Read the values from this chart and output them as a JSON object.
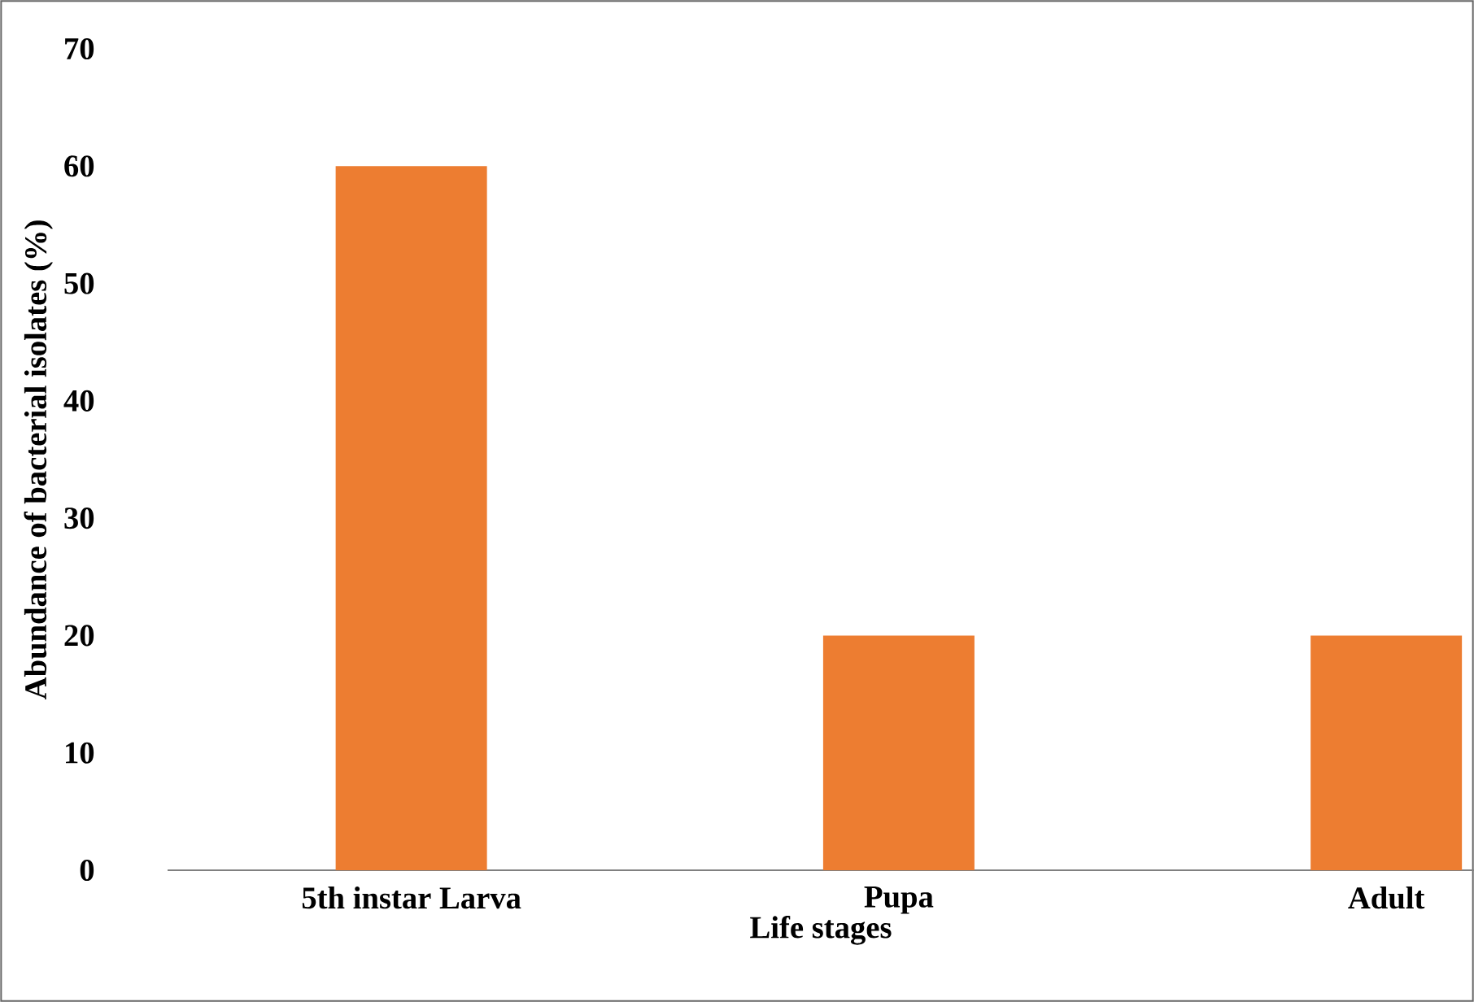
{
  "chart_data": {
    "type": "bar",
    "xlabel": "Life stages",
    "ylabel": "Abundance of bacterial isolates (%)",
    "categories": [
      "5th instar Larva",
      "Pupa",
      "Adult"
    ],
    "values": [
      60,
      20,
      20
    ],
    "color": "#ed7d31",
    "ylim": [
      0,
      70
    ],
    "yticks": [
      0,
      10,
      20,
      30,
      40,
      50,
      60,
      70
    ],
    "grid": false
  }
}
